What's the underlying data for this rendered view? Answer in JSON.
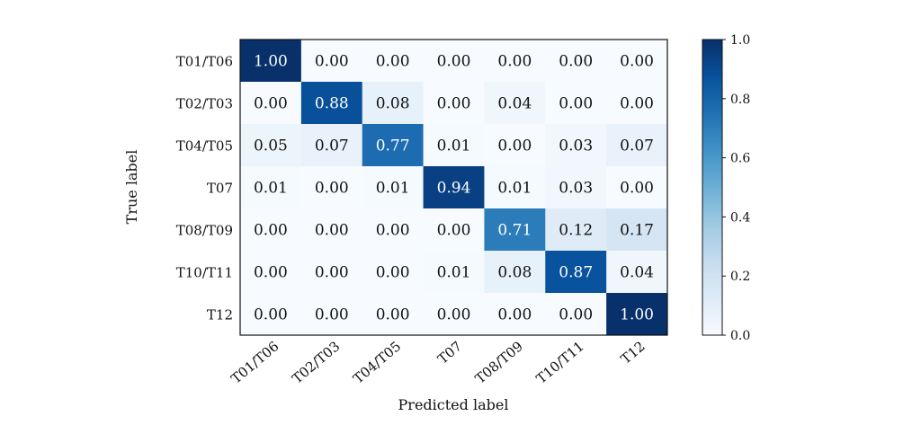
{
  "chart_data": {
    "type": "heatmap",
    "title": "",
    "xlabel": "Predicted label",
    "ylabel": "True label",
    "x_categories": [
      "T01/T06",
      "T02/T03",
      "T04/T05",
      "T07",
      "T08/T09",
      "T10/T11",
      "T12"
    ],
    "y_categories": [
      "T01/T06",
      "T02/T03",
      "T04/T05",
      "T07",
      "T08/T09",
      "T10/T11",
      "T12"
    ],
    "values": [
      [
        1.0,
        0.0,
        0.0,
        0.0,
        0.0,
        0.0,
        0.0
      ],
      [
        0.0,
        0.88,
        0.08,
        0.0,
        0.04,
        0.0,
        0.0
      ],
      [
        0.05,
        0.07,
        0.77,
        0.01,
        0.0,
        0.03,
        0.07
      ],
      [
        0.01,
        0.0,
        0.01,
        0.94,
        0.01,
        0.03,
        0.0
      ],
      [
        0.0,
        0.0,
        0.0,
        0.0,
        0.71,
        0.12,
        0.17
      ],
      [
        0.0,
        0.0,
        0.0,
        0.01,
        0.08,
        0.87,
        0.04
      ],
      [
        0.0,
        0.0,
        0.0,
        0.0,
        0.0,
        0.0,
        1.0
      ]
    ],
    "value_format_decimals": 2,
    "colormap": "Blues",
    "colorbar": {
      "range": [
        0.0,
        1.0
      ],
      "ticks": [
        "0.0",
        "0.2",
        "0.4",
        "0.6",
        "0.8",
        "1.0"
      ]
    },
    "text_color_dark": "#111111",
    "text_color_light": "#ffffff"
  }
}
